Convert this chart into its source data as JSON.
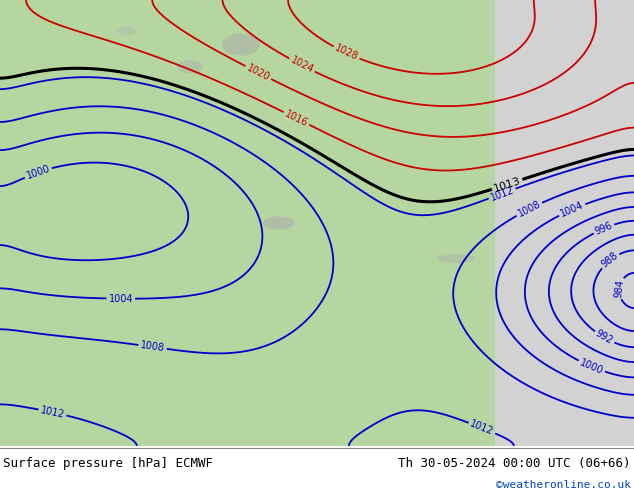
{
  "title_left": "Surface pressure [hPa] ECMWF",
  "title_right": "Th 30-05-2024 00:00 UTC (06+66)",
  "credit": "©weatheronline.co.uk",
  "land_color": "#b5d6a0",
  "sea_color": "#d2d2d2",
  "bottom_bar_color": "#ffffff",
  "contour_black": "#000000",
  "contour_red": "#cc0000",
  "contour_blue": "#0000cc",
  "figsize": [
    6.34,
    4.9
  ],
  "dpi": 100
}
